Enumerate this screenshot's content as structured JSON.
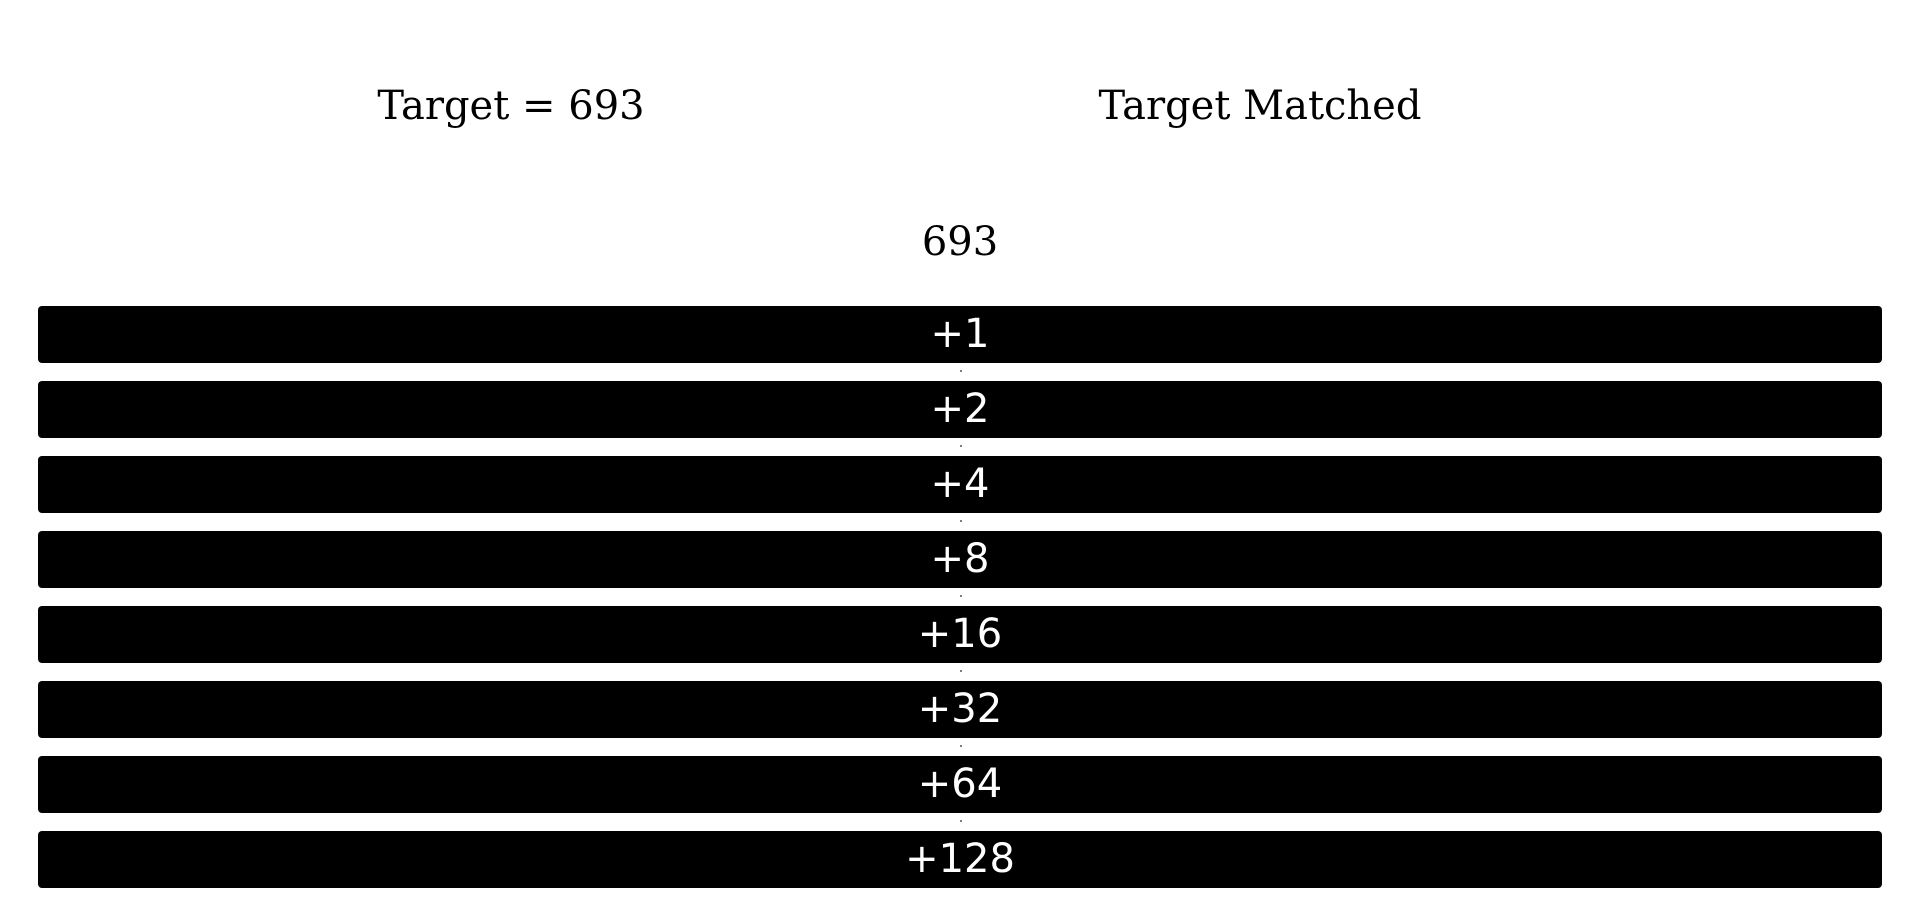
{
  "header": {
    "target_text": "Target = 693",
    "status_text": "Target Matched"
  },
  "current_value": "693",
  "buttons": [
    {
      "label": "+1"
    },
    {
      "label": "+2"
    },
    {
      "label": "+4"
    },
    {
      "label": "+8"
    },
    {
      "label": "+16"
    },
    {
      "label": "+32"
    },
    {
      "label": "+64"
    },
    {
      "label": "+128"
    }
  ],
  "colors": {
    "background": "#ffffff",
    "button_background": "#000000",
    "button_text": "#ffffff",
    "text": "#000000"
  }
}
